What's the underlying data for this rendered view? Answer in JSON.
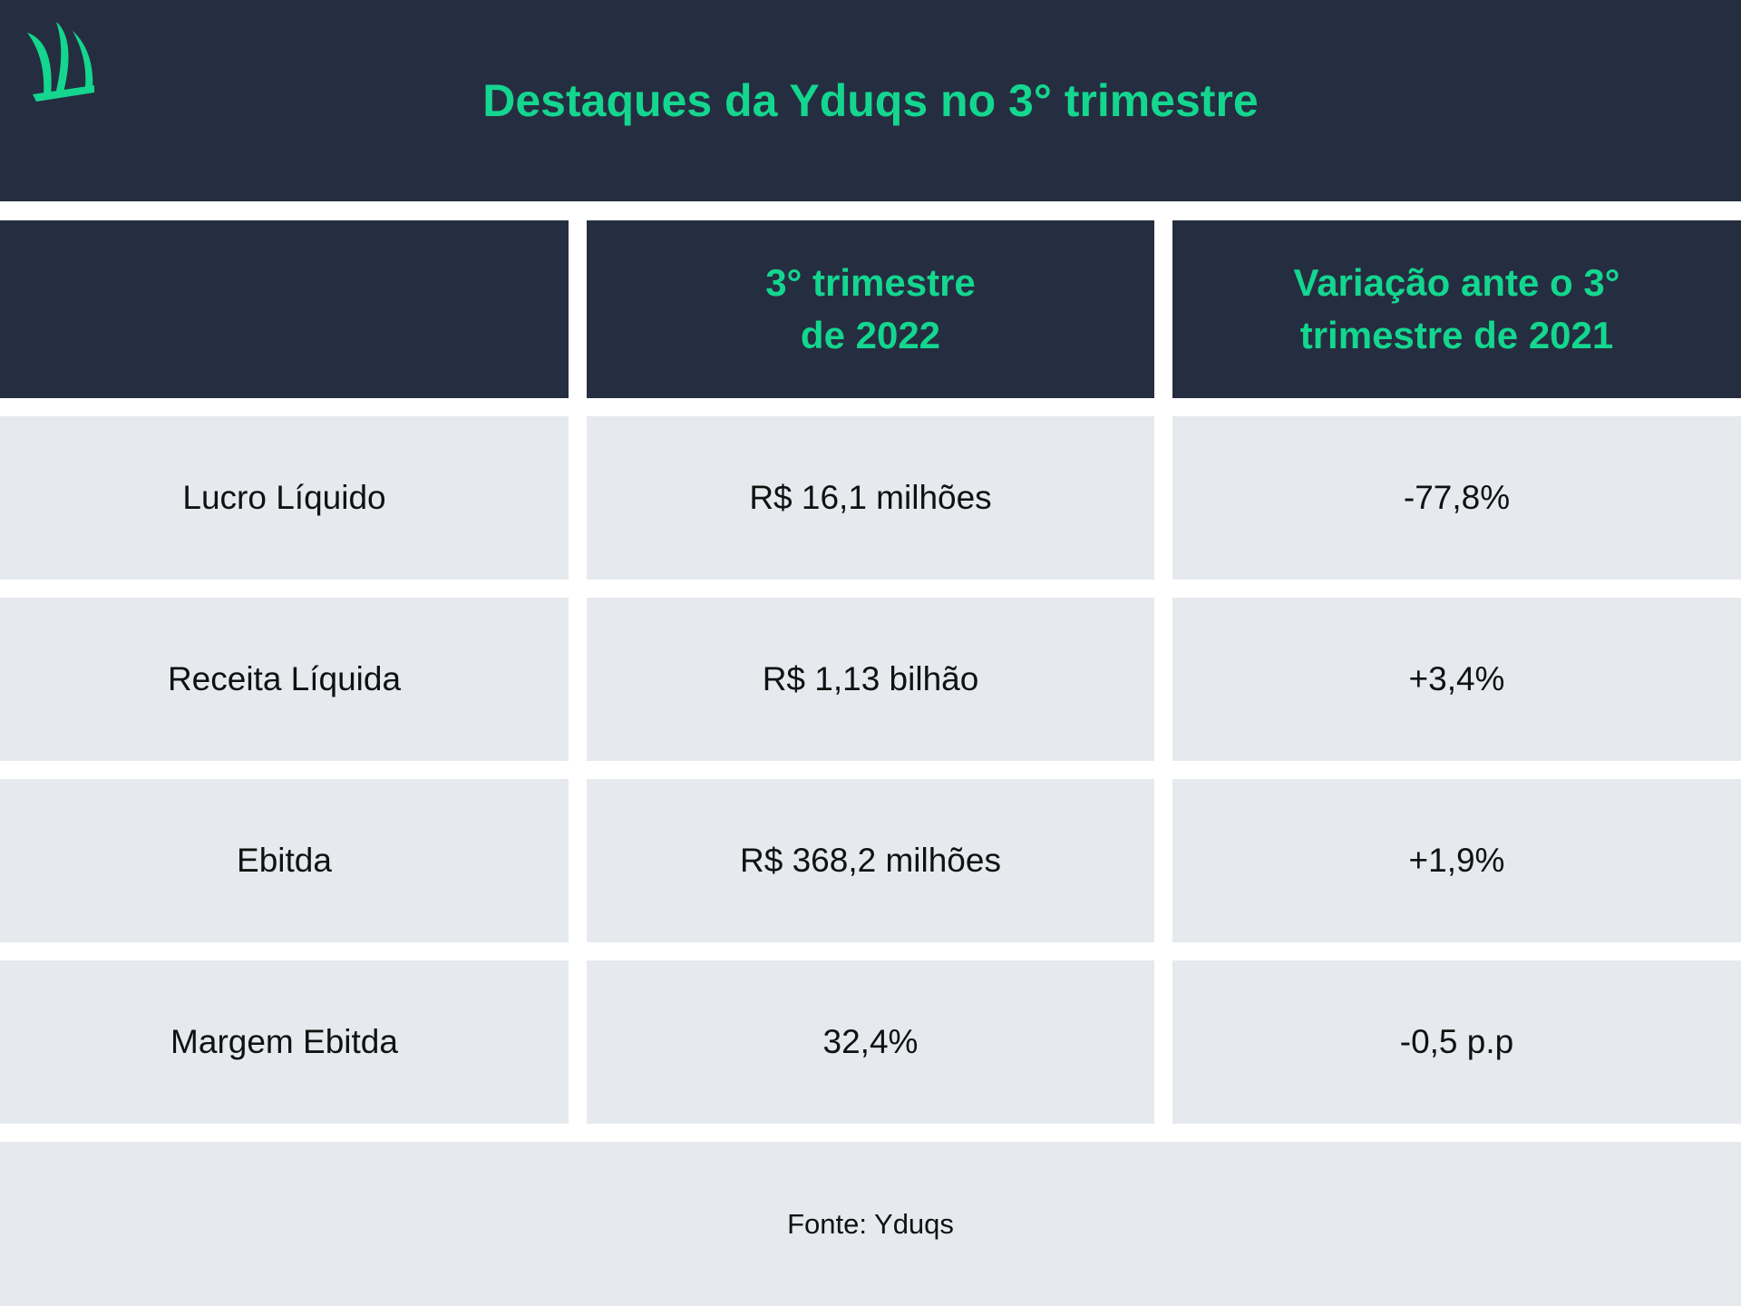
{
  "title": "Destaques da Yduqs no 3° trimestre",
  "logo": {
    "icon": "yduqs-sail-logo-icon",
    "color": "#14d68f"
  },
  "colors": {
    "header_bg": "#252e40",
    "accent": "#14d68f",
    "row_bg": "#e6e9ee",
    "text": "#111111"
  },
  "chart_data": {
    "type": "table",
    "columns": [
      "",
      "3° trimestre\nde 2022",
      "Variação ante o 3°\ntrimestre de 2021"
    ],
    "rows": [
      [
        "Lucro Líquido",
        "R$ 16,1 milhões",
        "-77,8%"
      ],
      [
        "Receita Líquida",
        "R$ 1,13 bilhão",
        "+3,4%"
      ],
      [
        "Ebitda",
        "R$ 368,2 milhões",
        "+1,9%"
      ],
      [
        "Margem Ebitda",
        "32,4%",
        "-0,5 p.p"
      ]
    ]
  },
  "source": "Fonte: Yduqs"
}
